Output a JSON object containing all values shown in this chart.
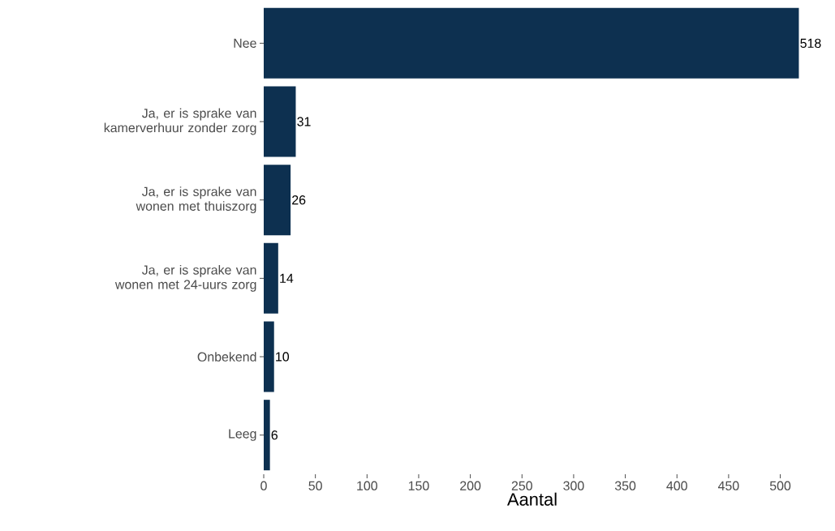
{
  "chart_data": {
    "type": "bar",
    "orientation": "horizontal",
    "xlabel": "Aantal",
    "categories": [
      "Nee",
      "Ja, er is sprake van kamerverhuur zonder zorg",
      "Ja, er is sprake van wonen met thuiszorg",
      "Ja, er is sprake van wonen met 24-uurs zorg",
      "Onbekend",
      "Leeg"
    ],
    "values": [
      518,
      31,
      26,
      14,
      10,
      6
    ],
    "color": "#0d3050",
    "data_labels": true,
    "xlim": [
      0,
      520
    ],
    "xticks": [
      0,
      50,
      100,
      150,
      200,
      250,
      300,
      350,
      400,
      450,
      500
    ],
    "grid": false
  }
}
